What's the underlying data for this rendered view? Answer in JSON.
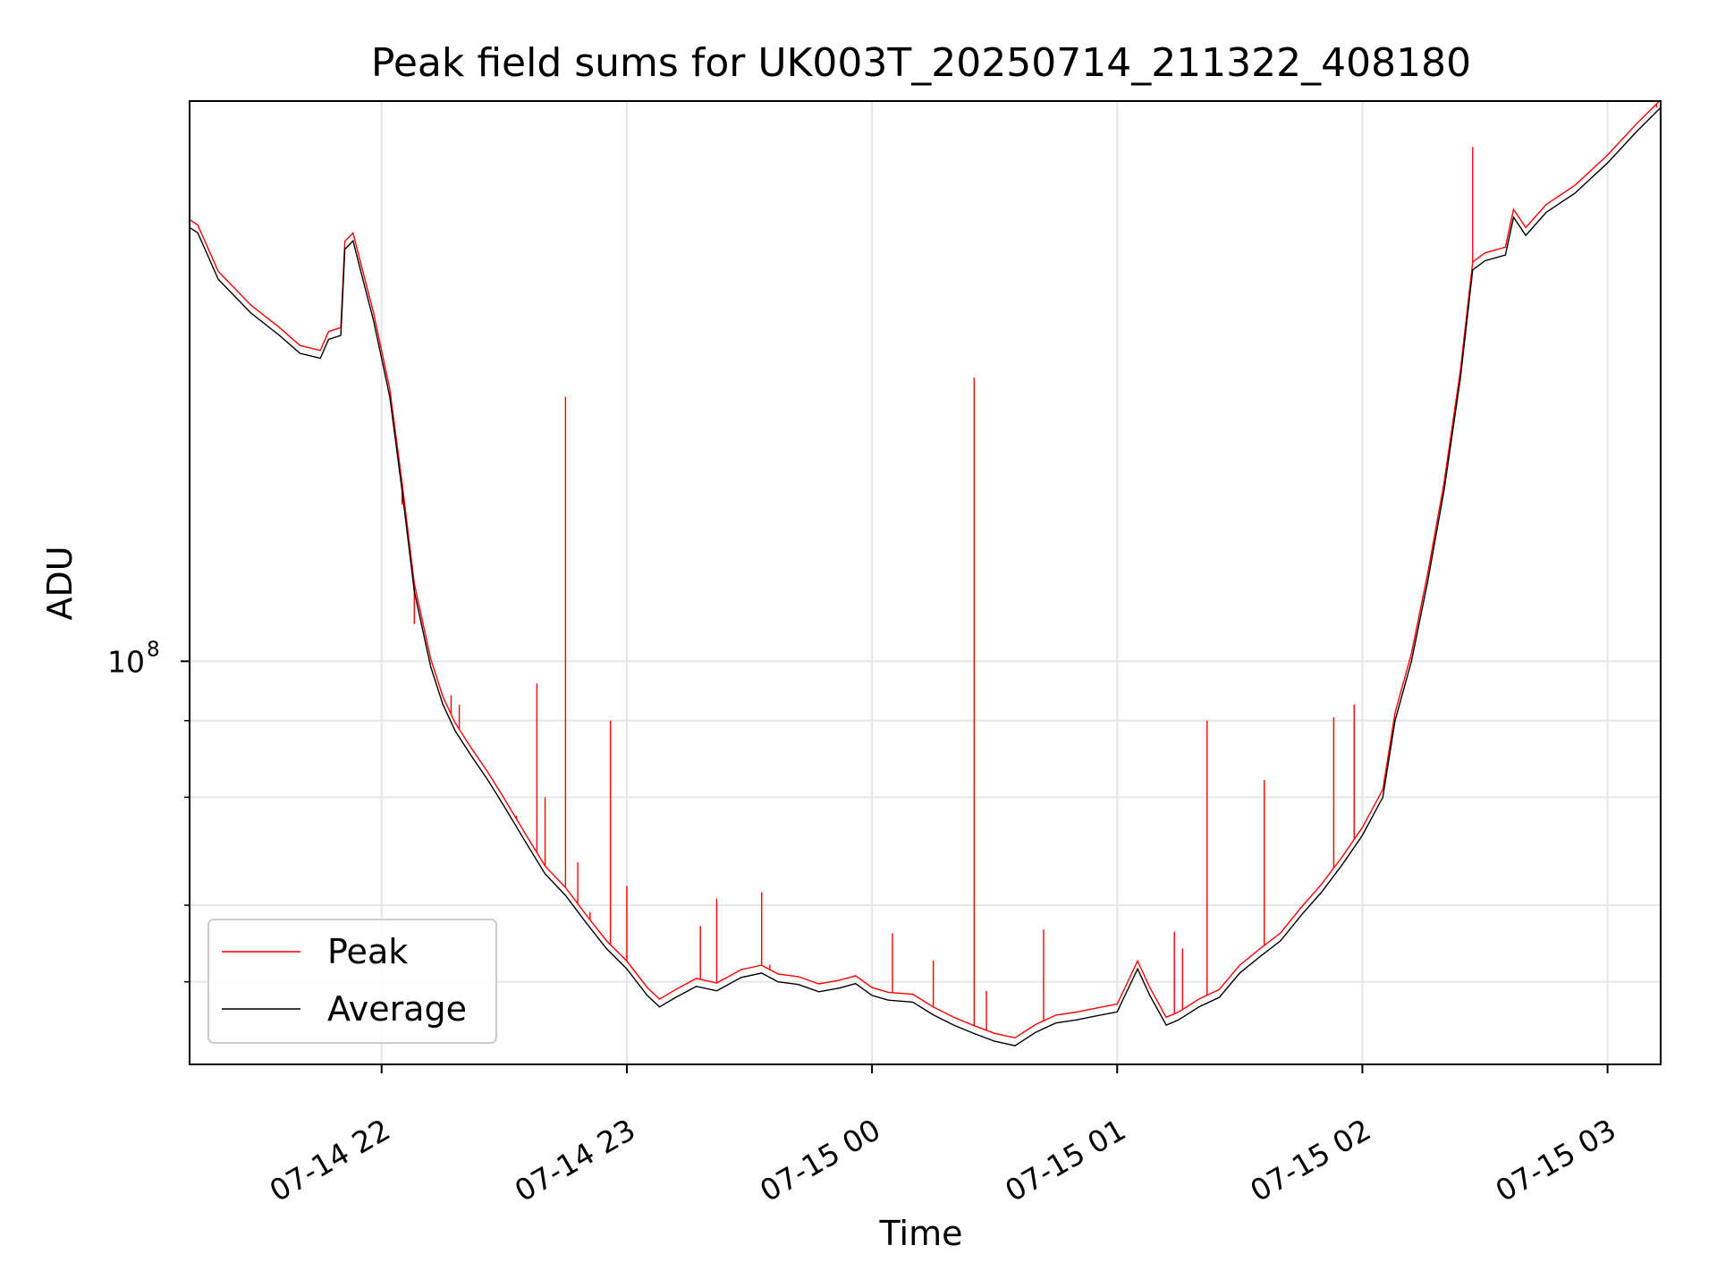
{
  "chart_data": {
    "type": "line",
    "title": "Peak field sums for UK003T_20250714_211322_408180",
    "xlabel": "Time",
    "ylabel": "ADU",
    "xscale": "time",
    "yscale": "log",
    "xlim": [
      "2025-07-14 21:13",
      "2025-07-15 03:13"
    ],
    "ylim": [
      22000000,
      820000000
    ],
    "grid": true,
    "legend": {
      "placement": "lower-left",
      "entries": [
        "Peak",
        "Average"
      ]
    },
    "x_ticks": [
      {
        "value": "2025-07-14 22:00",
        "label": "07-14 22"
      },
      {
        "value": "2025-07-14 23:00",
        "label": "07-14 23"
      },
      {
        "value": "2025-07-15 00:00",
        "label": "07-15 00"
      },
      {
        "value": "2025-07-15 01:00",
        "label": "07-15 01"
      },
      {
        "value": "2025-07-15 02:00",
        "label": "07-15 02"
      },
      {
        "value": "2025-07-15 03:00",
        "label": "07-15 03"
      }
    ],
    "y_ticks": [
      {
        "value": 100000000,
        "label_base": "10",
        "label_exp": "8"
      }
    ],
    "y_minor_gridlines": [
      30000000,
      40000000,
      60000000,
      80000000
    ],
    "series": [
      {
        "name": "Average",
        "color": "#000000",
        "points": [
          [
            "2025-07-14 21:13",
            510000000
          ],
          [
            "2025-07-14 21:15",
            500000000
          ],
          [
            "2025-07-14 21:20",
            420000000
          ],
          [
            "2025-07-14 21:28",
            370000000
          ],
          [
            "2025-07-14 21:35",
            340000000
          ],
          [
            "2025-07-14 21:40",
            318000000
          ],
          [
            "2025-07-14 21:45",
            312000000
          ],
          [
            "2025-07-14 21:47",
            335000000
          ],
          [
            "2025-07-14 21:50",
            340000000
          ],
          [
            "2025-07-14 21:51",
            470000000
          ],
          [
            "2025-07-14 21:53",
            485000000
          ],
          [
            "2025-07-14 21:55",
            430000000
          ],
          [
            "2025-07-14 21:58",
            360000000
          ],
          [
            "2025-07-14 22:02",
            270000000
          ],
          [
            "2025-07-14 22:05",
            190000000
          ],
          [
            "2025-07-14 22:08",
            130000000
          ],
          [
            "2025-07-14 22:12",
            98000000
          ],
          [
            "2025-07-14 22:15",
            85000000
          ],
          [
            "2025-07-14 22:18",
            77000000
          ],
          [
            "2025-07-14 22:22",
            70000000
          ],
          [
            "2025-07-14 22:26",
            64000000
          ],
          [
            "2025-07-14 22:30",
            58000000
          ],
          [
            "2025-07-14 22:35",
            51000000
          ],
          [
            "2025-07-14 22:40",
            45000000
          ],
          [
            "2025-07-14 22:45",
            41500000
          ],
          [
            "2025-07-14 22:50",
            37500000
          ],
          [
            "2025-07-14 22:55",
            34000000
          ],
          [
            "2025-07-14 23:00",
            31500000
          ],
          [
            "2025-07-14 23:05",
            28500000
          ],
          [
            "2025-07-14 23:08",
            27300000
          ],
          [
            "2025-07-14 23:12",
            28300000
          ],
          [
            "2025-07-14 23:17",
            29500000
          ],
          [
            "2025-07-14 23:22",
            29000000
          ],
          [
            "2025-07-14 23:28",
            30500000
          ],
          [
            "2025-07-14 23:33",
            31000000
          ],
          [
            "2025-07-14 23:37",
            30000000
          ],
          [
            "2025-07-14 23:42",
            29700000
          ],
          [
            "2025-07-14 23:47",
            28900000
          ],
          [
            "2025-07-14 23:52",
            29300000
          ],
          [
            "2025-07-14 23:56",
            29800000
          ],
          [
            "2025-07-15 00:00",
            28500000
          ],
          [
            "2025-07-15 00:04",
            28000000
          ],
          [
            "2025-07-15 00:10",
            27800000
          ],
          [
            "2025-07-15 00:15",
            26500000
          ],
          [
            "2025-07-15 00:20",
            25500000
          ],
          [
            "2025-07-15 00:25",
            24700000
          ],
          [
            "2025-07-15 00:30",
            24000000
          ],
          [
            "2025-07-15 00:35",
            23600000
          ],
          [
            "2025-07-15 00:40",
            24800000
          ],
          [
            "2025-07-15 00:45",
            25700000
          ],
          [
            "2025-07-15 00:50",
            26000000
          ],
          [
            "2025-07-15 00:55",
            26400000
          ],
          [
            "2025-07-15 01:00",
            26800000
          ],
          [
            "2025-07-15 01:05",
            31500000
          ],
          [
            "2025-07-15 01:08",
            28500000
          ],
          [
            "2025-07-15 01:12",
            25500000
          ],
          [
            "2025-07-15 01:15",
            26000000
          ],
          [
            "2025-07-15 01:20",
            27300000
          ],
          [
            "2025-07-15 01:25",
            28300000
          ],
          [
            "2025-07-15 01:30",
            31000000
          ],
          [
            "2025-07-15 01:35",
            33000000
          ],
          [
            "2025-07-15 01:40",
            35000000
          ],
          [
            "2025-07-15 01:45",
            38500000
          ],
          [
            "2025-07-15 01:50",
            42000000
          ],
          [
            "2025-07-15 01:55",
            46500000
          ],
          [
            "2025-07-15 02:00",
            52000000
          ],
          [
            "2025-07-15 02:05",
            60000000
          ],
          [
            "2025-07-15 02:08",
            80000000
          ],
          [
            "2025-07-15 02:12",
            100000000
          ],
          [
            "2025-07-15 02:16",
            135000000
          ],
          [
            "2025-07-15 02:20",
            190000000
          ],
          [
            "2025-07-15 02:24",
            290000000
          ],
          [
            "2025-07-15 02:27",
            435000000
          ],
          [
            "2025-07-15 02:30",
            450000000
          ],
          [
            "2025-07-15 02:35",
            460000000
          ],
          [
            "2025-07-15 02:37",
            530000000
          ],
          [
            "2025-07-15 02:40",
            495000000
          ],
          [
            "2025-07-15 02:45",
            540000000
          ],
          [
            "2025-07-15 02:52",
            580000000
          ],
          [
            "2025-07-15 03:00",
            650000000
          ],
          [
            "2025-07-15 03:07",
            730000000
          ],
          [
            "2025-07-15 03:13",
            800000000
          ]
        ]
      },
      {
        "name": "Peak",
        "color": "#ff0000",
        "spikes": [
          [
            "2025-07-14 22:05",
            180000000
          ],
          [
            "2025-07-14 22:08",
            115000000
          ],
          [
            "2025-07-14 22:17",
            88000000
          ],
          [
            "2025-07-14 22:19",
            85000000
          ],
          [
            "2025-07-14 22:33",
            56000000
          ],
          [
            "2025-07-14 22:38",
            92000000
          ],
          [
            "2025-07-14 22:40",
            60000000
          ],
          [
            "2025-07-14 22:45",
            270000000
          ],
          [
            "2025-07-14 22:48",
            47000000
          ],
          [
            "2025-07-14 22:51",
            39000000
          ],
          [
            "2025-07-14 22:56",
            80000000
          ],
          [
            "2025-07-14 23:00",
            43000000
          ],
          [
            "2025-07-14 23:18",
            37000000
          ],
          [
            "2025-07-14 23:22",
            41000000
          ],
          [
            "2025-07-14 23:33",
            42000000
          ],
          [
            "2025-07-14 23:35",
            32000000
          ],
          [
            "2025-07-15 00:05",
            36000000
          ],
          [
            "2025-07-15 00:15",
            32500000
          ],
          [
            "2025-07-15 00:25",
            290000000
          ],
          [
            "2025-07-15 00:28",
            29000000
          ],
          [
            "2025-07-15 00:42",
            36500000
          ],
          [
            "2025-07-15 01:14",
            36200000
          ],
          [
            "2025-07-15 01:16",
            34000000
          ],
          [
            "2025-07-15 01:22",
            80000000
          ],
          [
            "2025-07-15 01:36",
            64000000
          ],
          [
            "2025-07-15 01:53",
            81000000
          ],
          [
            "2025-07-15 01:58",
            85000000
          ],
          [
            "2025-07-15 02:27",
            690000000
          ],
          [
            "2025-07-15 03:12",
            800000000
          ]
        ]
      }
    ]
  }
}
